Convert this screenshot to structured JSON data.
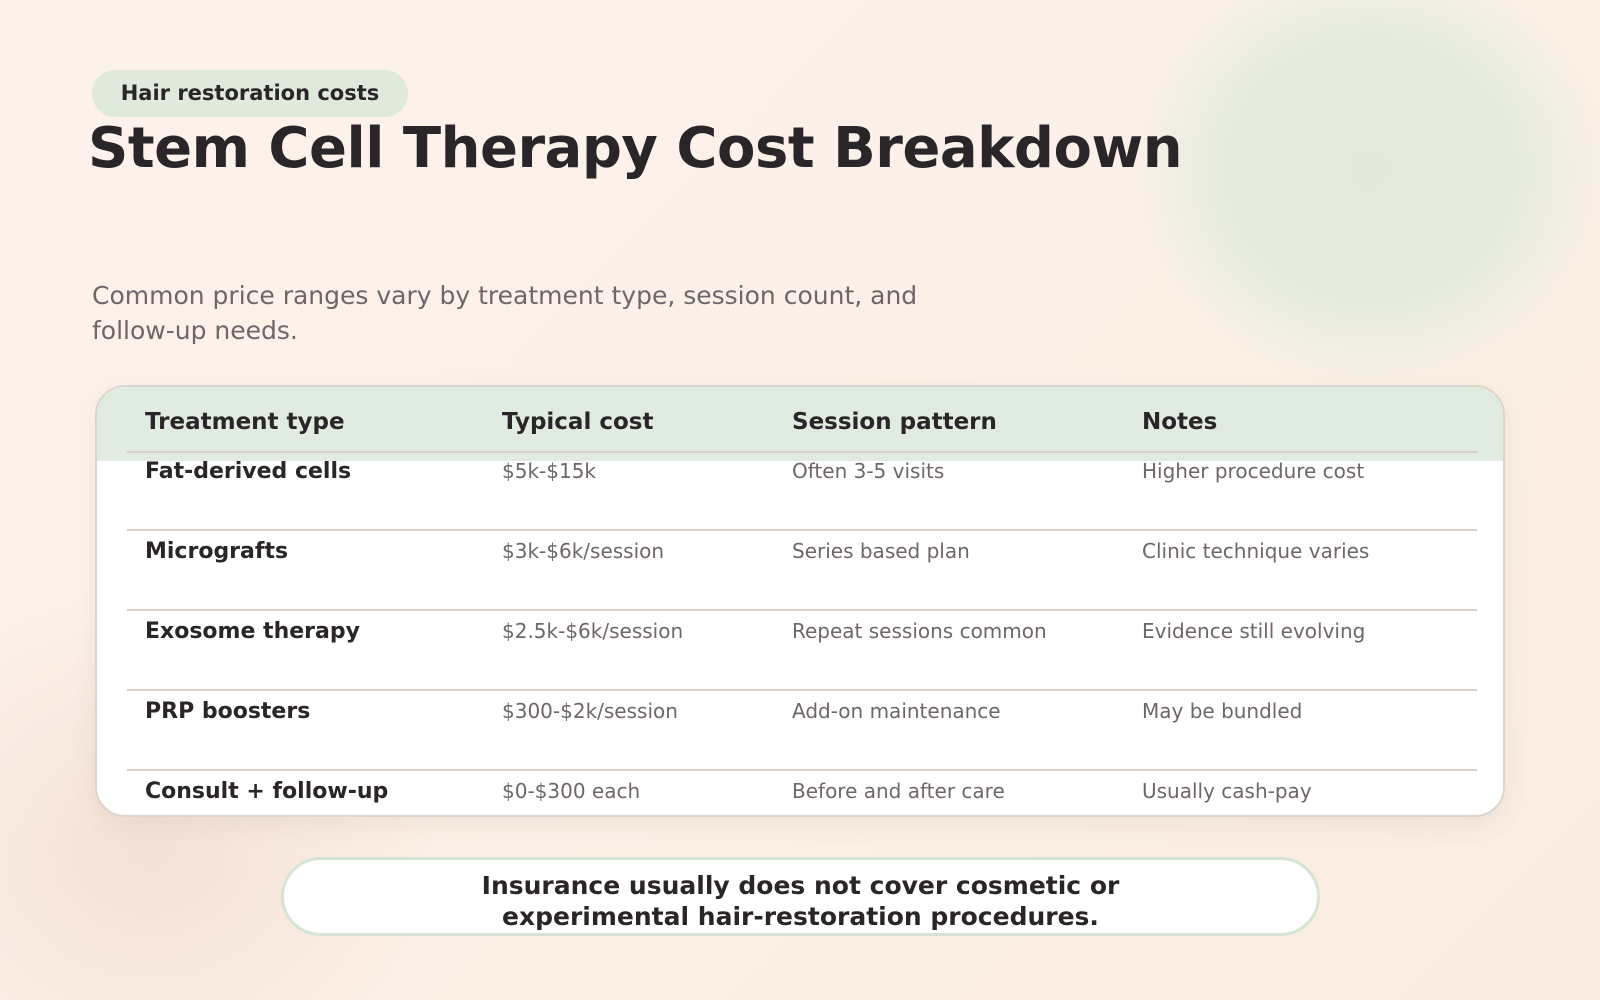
{
  "tag": "Hair restoration costs",
  "title": "Stem Cell Therapy Cost Breakdown",
  "subtitle": "Common price ranges vary by treatment type, session count, and follow-up needs.",
  "table": {
    "headers": [
      "Treatment type",
      "Typical cost",
      "Session pattern",
      "Notes"
    ],
    "rows": [
      [
        "Fat-derived cells",
        "$5k-$15k",
        "Often 3-5 visits",
        "Higher procedure cost"
      ],
      [
        "Micrografts",
        "$3k-$6k/session",
        "Series based plan",
        "Clinic technique varies"
      ],
      [
        "Exosome therapy",
        "$2.5k-$6k/session",
        "Repeat sessions common",
        "Evidence still evolving"
      ],
      [
        "PRP boosters",
        "$300-$2k/session",
        "Add-on maintenance",
        "May be bundled"
      ],
      [
        "Consult + follow-up",
        "$0-$300 each",
        "Before and after care",
        "Usually cash-pay"
      ]
    ]
  },
  "note": "Insurance usually does not cover cosmetic or experimental hair-restoration procedures."
}
